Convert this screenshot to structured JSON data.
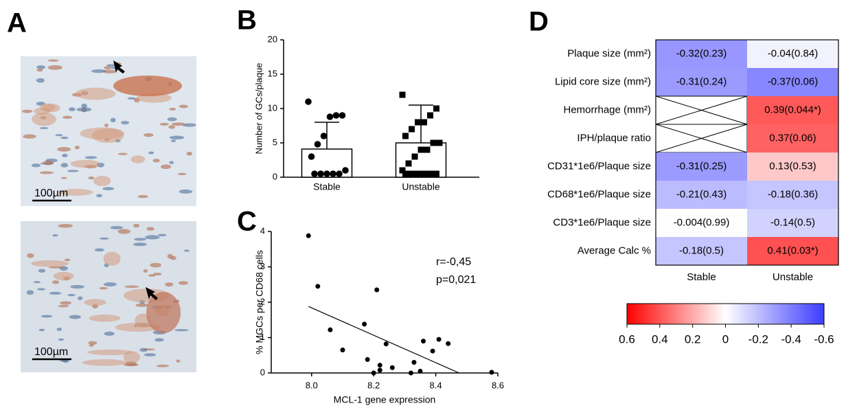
{
  "panel_a": {
    "label": "A",
    "scale_bar_labels": [
      "100µm",
      "100µm"
    ]
  },
  "chart_data": [
    {
      "type": "bar",
      "label": "B",
      "ylabel": "Number of GCs/plaque",
      "categories": [
        "Stable",
        "Unstable"
      ],
      "values": [
        4.1,
        5.0
      ],
      "errors": [
        3.9,
        5.5
      ],
      "points": [
        [
          11,
          9,
          9,
          8.8,
          6,
          4.8,
          3,
          1,
          0.5,
          0.5,
          0.5,
          0.5,
          0.5
        ],
        [
          12,
          10,
          9,
          8,
          8,
          7,
          6,
          5,
          5,
          4,
          4,
          3,
          2,
          1,
          0.5,
          0.5,
          0.5,
          0.5,
          0.5,
          0.5
        ]
      ],
      "markers": [
        "circle",
        "square"
      ],
      "color": "#ffffff",
      "edge_color": "#000000",
      "ylim": [
        0,
        20
      ],
      "yticks": [
        0,
        5,
        10,
        15,
        20
      ]
    },
    {
      "type": "scatter",
      "label": "C",
      "xlabel": "MCL-1 gene expression",
      "ylabel": "% MGCs per CD68 cells",
      "x": [
        7.99,
        8.02,
        8.06,
        8.1,
        8.18,
        8.2,
        8.21,
        8.22,
        8.22,
        8.24,
        8.17,
        8.26,
        8.32,
        8.33,
        8.35,
        8.36,
        8.39,
        8.41,
        8.44,
        8.58
      ],
      "y": [
        3.88,
        2.45,
        1.22,
        0.65,
        0.38,
        0,
        2.35,
        0.22,
        0.08,
        0.82,
        1.38,
        0.15,
        0,
        0.3,
        0.05,
        0.9,
        0.62,
        0.95,
        0.83,
        0.02
      ],
      "fit": {
        "x": [
          7.99,
          8.475
        ],
        "y": [
          1.88,
          0
        ]
      },
      "annotations": [
        "r=-0,45",
        "p=0,021"
      ],
      "color": "#000000",
      "xlim": [
        7.87,
        8.6
      ],
      "xticks": [
        {
          "value": 8.0,
          "label": "8.0"
        },
        8.2,
        8.4,
        8.6
      ],
      "ylim": [
        0,
        4
      ],
      "yticks": [
        0,
        1,
        2,
        3,
        4
      ]
    },
    {
      "type": "heatmap",
      "label": "D",
      "rows": [
        "Plaque size (mm²)",
        "Lipid core size (mm²)",
        "Hemorrhage (mm²)",
        "IPH/plaque ratio",
        "CD31*1e6/Plaque size",
        "CD68*1e6/Plaque size",
        "CD3*1e6/Plaque size",
        "Average Calc %"
      ],
      "columns": [
        "Stable",
        "Unstable"
      ],
      "values": [
        [
          -0.32,
          -0.04
        ],
        [
          -0.31,
          -0.37
        ],
        [
          null,
          0.39
        ],
        [
          null,
          0.37
        ],
        [
          -0.31,
          0.13
        ],
        [
          -0.21,
          -0.18
        ],
        [
          -0.004,
          -0.14
        ],
        [
          -0.18,
          0.41
        ]
      ],
      "value_labels": [
        [
          "-0.32(0.23)",
          "-0.04(0.84)"
        ],
        [
          "-0.31(0.24)",
          "-0.37(0.06)"
        ],
        [
          null,
          "0.39(0.044*)"
        ],
        [
          null,
          "0.37(0.06)"
        ],
        [
          "-0.31(0.25)",
          "0.13(0.53)"
        ],
        [
          "-0.21(0.43)",
          "-0.18(0.36)"
        ],
        [
          "-0.004(0.99)",
          "-0.14(0.5)"
        ],
        [
          "-0.18(0.5)",
          "0.41(0.03*)"
        ]
      ],
      "colormap": [
        "#ff0000",
        "#ffffff",
        "#3c3cff"
      ],
      "clim": [
        0.6,
        -0.6
      ],
      "cticks": [
        0.6,
        0.4,
        0.2,
        0,
        -0.2,
        -0.4,
        -0.6
      ]
    }
  ]
}
